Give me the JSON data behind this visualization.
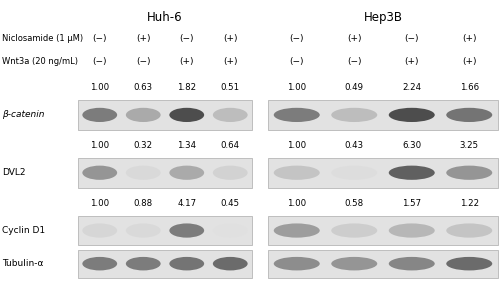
{
  "title_huh6": "Huh-6",
  "title_hep3b": "Hep3B",
  "niclosamide_label": "Niclosamide (1 μM)",
  "wnt3a_label": "Wnt3a (20 ng/mL)",
  "huh6_nico": [
    "(−)",
    "(+)",
    "(−)",
    "(+)"
  ],
  "huh6_wnt": [
    "(−)",
    "(−)",
    "(+)",
    "(+)"
  ],
  "hep3b_nico": [
    "(−)",
    "(+)",
    "(−)",
    "(+)"
  ],
  "hep3b_wnt": [
    "(−)",
    "(−)",
    "(+)",
    "(+)"
  ],
  "antibodies": [
    "β-catenin",
    "DVL2",
    "Cyclin D1",
    "Tubulin-α"
  ],
  "huh6_values": {
    "β-catenin": [
      "1.00",
      "0.63",
      "1.82",
      "0.51"
    ],
    "DVL2": [
      "1.00",
      "0.32",
      "1.34",
      "0.64"
    ],
    "Cyclin D1": [
      "1.00",
      "0.88",
      "4.17",
      "0.45"
    ],
    "Tubulin-α": null
  },
  "hep3b_values": {
    "β-catenin": [
      "1.00",
      "0.49",
      "2.24",
      "1.66"
    ],
    "DVL2": [
      "1.00",
      "0.43",
      "6.30",
      "3.25"
    ],
    "Cyclin D1": [
      "1.00",
      "0.58",
      "1.57",
      "1.22"
    ],
    "Tubulin-α": null
  },
  "huh6_band_intensity": {
    "β-catenin": [
      0.72,
      0.52,
      0.88,
      0.42
    ],
    "DVL2": [
      0.62,
      0.22,
      0.52,
      0.28
    ],
    "Cyclin D1": [
      0.25,
      0.22,
      0.72,
      0.15
    ],
    "Tubulin-α": [
      0.72,
      0.72,
      0.75,
      0.78
    ]
  },
  "hep3b_band_intensity": {
    "β-catenin": [
      0.72,
      0.42,
      0.88,
      0.75
    ],
    "DVL2": [
      0.38,
      0.18,
      0.82,
      0.62
    ],
    "Cyclin D1": [
      0.58,
      0.32,
      0.45,
      0.38
    ],
    "Tubulin-α": [
      0.65,
      0.62,
      0.68,
      0.78
    ]
  },
  "bg_color": "#e2e2e2",
  "label_italic": [
    true,
    false,
    false,
    false
  ]
}
